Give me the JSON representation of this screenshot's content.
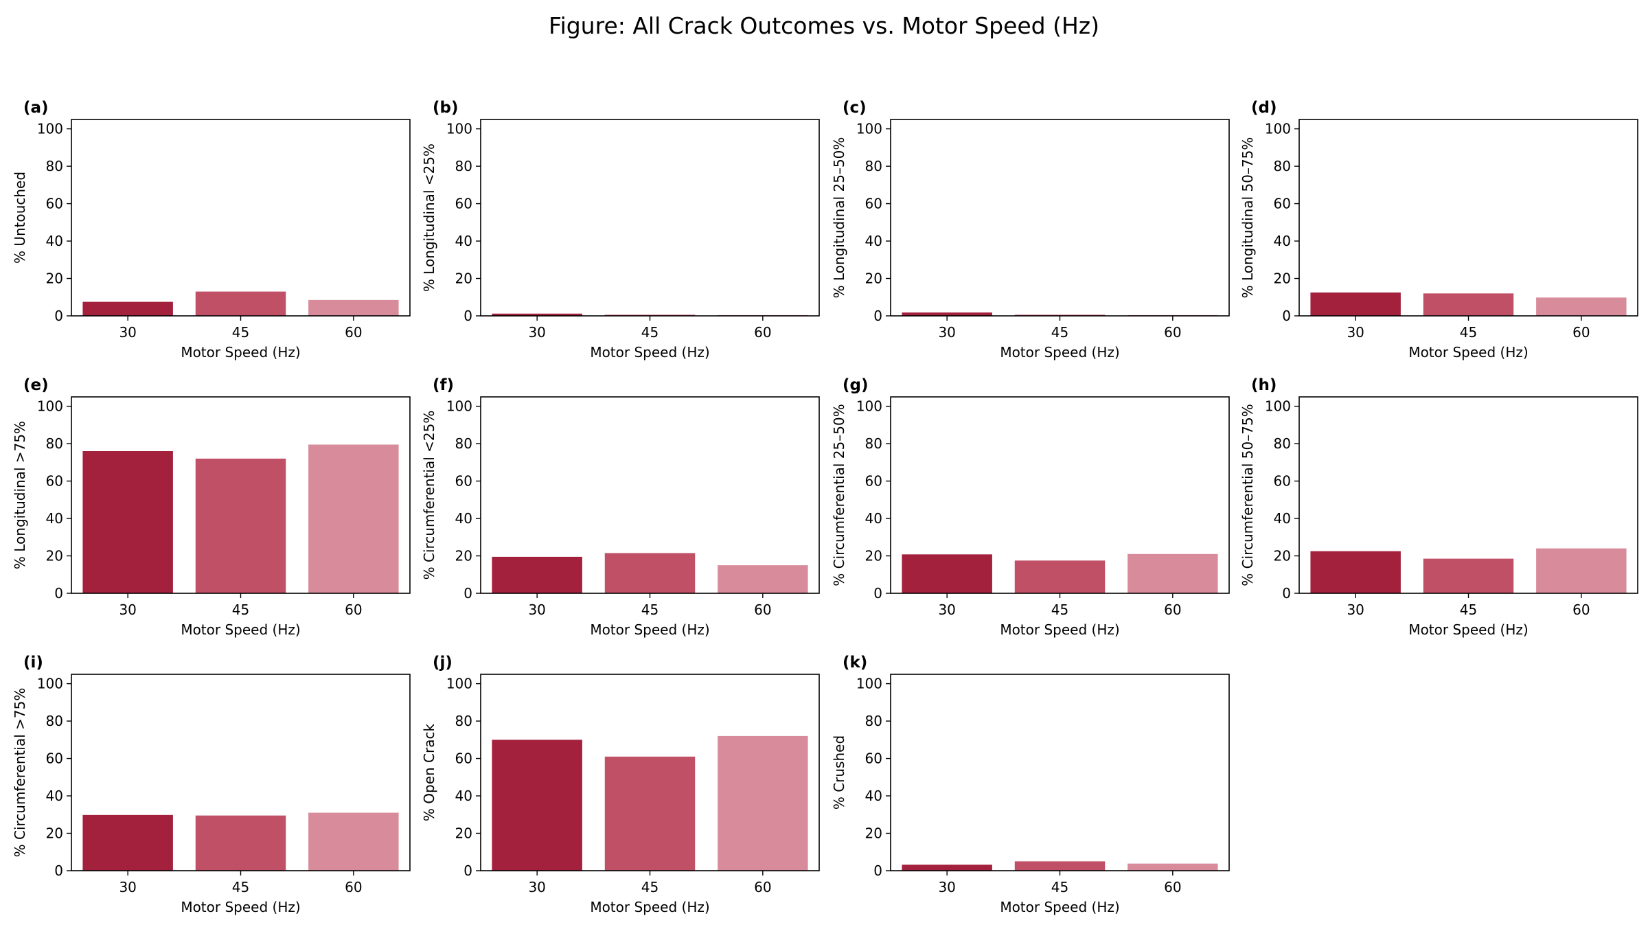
{
  "title": "Figure: All Crack Outcomes vs. Motor Speed (Hz)",
  "colors": [
    "#a3213d",
    "#c05066",
    "#d88c9b"
  ],
  "chart_data": [
    {
      "type": "bar",
      "panel": "(a)",
      "ylabel": "% Untouched",
      "xlabel": "Motor Speed (Hz)",
      "categories": [
        "30",
        "45",
        "60"
      ],
      "values": [
        7.5,
        13,
        8.5
      ],
      "ylim": [
        0,
        105
      ],
      "yticks": [
        0,
        20,
        40,
        60,
        80,
        100
      ],
      "grid": false
    },
    {
      "type": "bar",
      "panel": "(b)",
      "ylabel": "% Longitudinal <25%",
      "xlabel": "Motor Speed (Hz)",
      "categories": [
        "30",
        "45",
        "60"
      ],
      "values": [
        1.2,
        0.6,
        0.4
      ],
      "ylim": [
        0,
        105
      ],
      "yticks": [
        0,
        20,
        40,
        60,
        80,
        100
      ],
      "grid": false
    },
    {
      "type": "bar",
      "panel": "(c)",
      "ylabel": "% Longitudinal 25–50%",
      "xlabel": "Motor Speed (Hz)",
      "categories": [
        "30",
        "45",
        "60"
      ],
      "values": [
        1.8,
        0.6,
        0.4
      ],
      "ylim": [
        0,
        105
      ],
      "yticks": [
        0,
        20,
        40,
        60,
        80,
        100
      ],
      "grid": false
    },
    {
      "type": "bar",
      "panel": "(d)",
      "ylabel": "% Longitudinal 50–75%",
      "xlabel": "Motor Speed (Hz)",
      "categories": [
        "30",
        "45",
        "60"
      ],
      "values": [
        12.5,
        12,
        9.8
      ],
      "ylim": [
        0,
        105
      ],
      "yticks": [
        0,
        20,
        40,
        60,
        80,
        100
      ],
      "grid": false
    },
    {
      "type": "bar",
      "panel": "(e)",
      "ylabel": "% Longitudinal >75%",
      "xlabel": "Motor Speed (Hz)",
      "categories": [
        "30",
        "45",
        "60"
      ],
      "values": [
        76,
        72,
        79.5
      ],
      "ylim": [
        0,
        105
      ],
      "yticks": [
        0,
        20,
        40,
        60,
        80,
        100
      ],
      "grid": false
    },
    {
      "type": "bar",
      "panel": "(f)",
      "ylabel": "% Circumferential <25%",
      "xlabel": "Motor Speed (Hz)",
      "categories": [
        "30",
        "45",
        "60"
      ],
      "values": [
        19.5,
        21.5,
        15
      ],
      "ylim": [
        0,
        105
      ],
      "yticks": [
        0,
        20,
        40,
        60,
        80,
        100
      ],
      "grid": false
    },
    {
      "type": "bar",
      "panel": "(g)",
      "ylabel": "% Circumferential 25–50%",
      "xlabel": "Motor Speed (Hz)",
      "categories": [
        "30",
        "45",
        "60"
      ],
      "values": [
        20.8,
        17.5,
        21
      ],
      "ylim": [
        0,
        105
      ],
      "yticks": [
        0,
        20,
        40,
        60,
        80,
        100
      ],
      "grid": false
    },
    {
      "type": "bar",
      "panel": "(h)",
      "ylabel": "% Circumferential 50–75%",
      "xlabel": "Motor Speed (Hz)",
      "categories": [
        "30",
        "45",
        "60"
      ],
      "values": [
        22.5,
        18.5,
        24
      ],
      "ylim": [
        0,
        105
      ],
      "yticks": [
        0,
        20,
        40,
        60,
        80,
        100
      ],
      "grid": false
    },
    {
      "type": "bar",
      "panel": "(i)",
      "ylabel": "% Circumferential >75%",
      "xlabel": "Motor Speed (Hz)",
      "categories": [
        "30",
        "45",
        "60"
      ],
      "values": [
        29.8,
        29.5,
        31
      ],
      "ylim": [
        0,
        105
      ],
      "yticks": [
        0,
        20,
        40,
        60,
        80,
        100
      ],
      "grid": false
    },
    {
      "type": "bar",
      "panel": "(j)",
      "ylabel": "% Open Crack",
      "xlabel": "Motor Speed (Hz)",
      "categories": [
        "30",
        "45",
        "60"
      ],
      "values": [
        70,
        61,
        72
      ],
      "ylim": [
        0,
        105
      ],
      "yticks": [
        0,
        20,
        40,
        60,
        80,
        100
      ],
      "grid": false
    },
    {
      "type": "bar",
      "panel": "(k)",
      "ylabel": "% Crushed",
      "xlabel": "Motor Speed (Hz)",
      "categories": [
        "30",
        "45",
        "60"
      ],
      "values": [
        3.2,
        5,
        3.8
      ],
      "ylim": [
        0,
        105
      ],
      "yticks": [
        0,
        20,
        40,
        60,
        80,
        100
      ],
      "grid": false
    }
  ]
}
